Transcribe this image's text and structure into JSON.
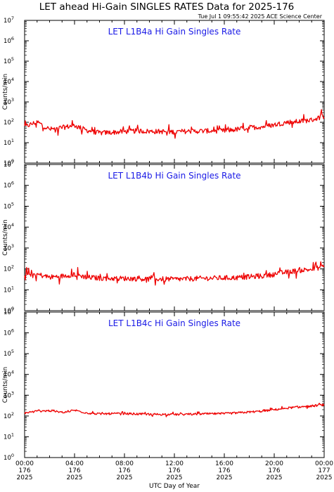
{
  "header": {
    "title": "LET ahead Hi-Gain SINGLES RATES Data for 2025-176",
    "timestamp": "Tue Jul  1 09:55:42 2025 ACE Science Center"
  },
  "colors": {
    "line": "#ee0000",
    "panel_title": "#1a1ae6",
    "axes": "#000000"
  },
  "chart_data": [
    {
      "type": "line",
      "title": "LET L1B4a Hi Gain Singles Rate",
      "ylabel": "Counts/min",
      "xlabel": "UTC Day of Year",
      "yscale": "log",
      "ylim": [
        1,
        10000000
      ],
      "xlim": [
        "2025-176 00:00",
        "2025-177 00:00"
      ],
      "x": [
        "00:00",
        "01:00",
        "02:00",
        "03:00",
        "04:00",
        "05:00",
        "06:00",
        "07:00",
        "08:00",
        "09:00",
        "10:00",
        "11:00",
        "12:00",
        "13:00",
        "14:00",
        "15:00",
        "16:00",
        "17:00",
        "18:00",
        "19:00",
        "20:00",
        "21:00",
        "22:00",
        "23:00",
        "24:00"
      ],
      "series": [
        {
          "values": [
            60,
            105,
            45,
            55,
            70,
            40,
            30,
            32,
            35,
            38,
            36,
            35,
            34,
            36,
            37,
            38,
            38,
            45,
            55,
            60,
            75,
            100,
            110,
            130,
            200
          ]
        }
      ]
    },
    {
      "type": "line",
      "title": "LET L1B4b Hi Gain Singles Rate",
      "ylabel": "Counts/min",
      "xlabel": "UTC Day of Year",
      "yscale": "log",
      "ylim": [
        1,
        10000000
      ],
      "xlim": [
        "2025-176 00:00",
        "2025-177 00:00"
      ],
      "x": [
        "00:00",
        "01:00",
        "02:00",
        "03:00",
        "04:00",
        "05:00",
        "06:00",
        "07:00",
        "08:00",
        "09:00",
        "10:00",
        "11:00",
        "12:00",
        "13:00",
        "14:00",
        "15:00",
        "16:00",
        "17:00",
        "18:00",
        "19:00",
        "20:00",
        "21:00",
        "22:00",
        "23:00",
        "24:00"
      ],
      "series": [
        {
          "values": [
            60,
            55,
            40,
            45,
            55,
            40,
            36,
            35,
            35,
            34,
            33,
            33,
            32,
            33,
            35,
            36,
            37,
            38,
            42,
            45,
            55,
            70,
            85,
            95,
            130
          ]
        }
      ]
    },
    {
      "type": "line",
      "title": "LET L1B4c Hi Gain Singles Rate",
      "ylabel": "Counts/min",
      "xlabel": "UTC Day of Year",
      "yscale": "log",
      "ylim": [
        1,
        10000000
      ],
      "xlim": [
        "2025-176 00:00",
        "2025-177 00:00"
      ],
      "x": [
        "00:00",
        "01:00",
        "02:00",
        "03:00",
        "04:00",
        "05:00",
        "06:00",
        "07:00",
        "08:00",
        "09:00",
        "10:00",
        "11:00",
        "12:00",
        "13:00",
        "14:00",
        "15:00",
        "16:00",
        "17:00",
        "18:00",
        "19:00",
        "20:00",
        "21:00",
        "22:00",
        "23:00",
        "24:00"
      ],
      "series": [
        {
          "values": [
            140,
            170,
            180,
            150,
            190,
            140,
            125,
            130,
            130,
            125,
            122,
            120,
            118,
            120,
            125,
            128,
            130,
            140,
            155,
            170,
            200,
            240,
            270,
            300,
            350
          ]
        }
      ]
    }
  ],
  "y_ticks": [
    {
      "base": "10",
      "exp": "0"
    },
    {
      "base": "10",
      "exp": "1"
    },
    {
      "base": "10",
      "exp": "2"
    },
    {
      "base": "10",
      "exp": "3"
    },
    {
      "base": "10",
      "exp": "4"
    },
    {
      "base": "10",
      "exp": "5"
    },
    {
      "base": "10",
      "exp": "6"
    },
    {
      "base": "10",
      "exp": "7"
    }
  ],
  "x_ticks": [
    {
      "time": "00:00",
      "day": "176",
      "year": "2025"
    },
    {
      "time": "04:00",
      "day": "176",
      "year": "2025"
    },
    {
      "time": "08:00",
      "day": "176",
      "year": "2025"
    },
    {
      "time": "12:00",
      "day": "176",
      "year": "2025"
    },
    {
      "time": "16:00",
      "day": "176",
      "year": "2025"
    },
    {
      "time": "20:00",
      "day": "176",
      "year": "2025"
    },
    {
      "time": "00:00",
      "day": "177",
      "year": "2025"
    }
  ]
}
